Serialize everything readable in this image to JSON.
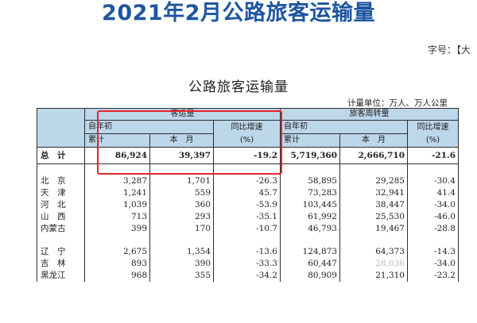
{
  "page_title": "2021年2月公路旅客运输量",
  "font_size_label": "字号：【大",
  "table_title": "公路旅客运输量",
  "unit_line": "计量单位：万人、万人公里",
  "headers": {
    "passenger_volume": "客运量",
    "passenger_turnover": "旅客周转量",
    "ytd": "自年初",
    "cumulative": "累计",
    "this_month": "本　月",
    "yoy": "同比增速",
    "percent": "(%)"
  },
  "total": {
    "region": "总　计",
    "pv_cum": "86,924",
    "pv_month": "39,397",
    "pv_yoy": "-19.2",
    "pt_cum": "5,719,360",
    "pt_month": "2,666,710",
    "pt_yoy": "-21.6"
  },
  "rows": [
    {
      "region": "北　京",
      "pv_cum": "3,287",
      "pv_month": "1,701",
      "pv_yoy": "-26.3",
      "pt_cum": "58,895",
      "pt_month": "29,285",
      "pt_yoy": "-30.4"
    },
    {
      "region": "天　津",
      "pv_cum": "1,241",
      "pv_month": "559",
      "pv_yoy": "45.7",
      "pt_cum": "73,283",
      "pt_month": "32,941",
      "pt_yoy": "41.4"
    },
    {
      "region": "河　北",
      "pv_cum": "1,039",
      "pv_month": "360",
      "pv_yoy": "-53.9",
      "pt_cum": "103,445",
      "pt_month": "38,447",
      "pt_yoy": "-34.0"
    },
    {
      "region": "山　西",
      "pv_cum": "713",
      "pv_month": "293",
      "pv_yoy": "-35.1",
      "pt_cum": "61,992",
      "pt_month": "25,530",
      "pt_yoy": "-46.0"
    },
    {
      "region": "内蒙古",
      "pv_cum": "399",
      "pv_month": "170",
      "pv_yoy": "-10.7",
      "pt_cum": "46,793",
      "pt_month": "19,467",
      "pt_yoy": "-28.8"
    },
    {
      "region": "辽　宁",
      "pv_cum": "2,675",
      "pv_month": "1,354",
      "pv_yoy": "-13.6",
      "pt_cum": "124,873",
      "pt_month": "64,373",
      "pt_yoy": "-14.3"
    },
    {
      "region": "吉　林",
      "pv_cum": "893",
      "pv_month": "390",
      "pv_yoy": "-33.3",
      "pt_cum": "60,447",
      "pt_month": "28,036",
      "pt_yoy": "-34.0"
    },
    {
      "region": "黑龙江",
      "pv_cum": "968",
      "pv_month": "355",
      "pv_yoy": "-34.2",
      "pt_cum": "80,909",
      "pt_month": "21,310",
      "pt_yoy": "-23.2"
    }
  ],
  "colors": {
    "title": "#1e56a0",
    "header_fill": "#bcd6ea",
    "highlight": "#e8232c"
  }
}
